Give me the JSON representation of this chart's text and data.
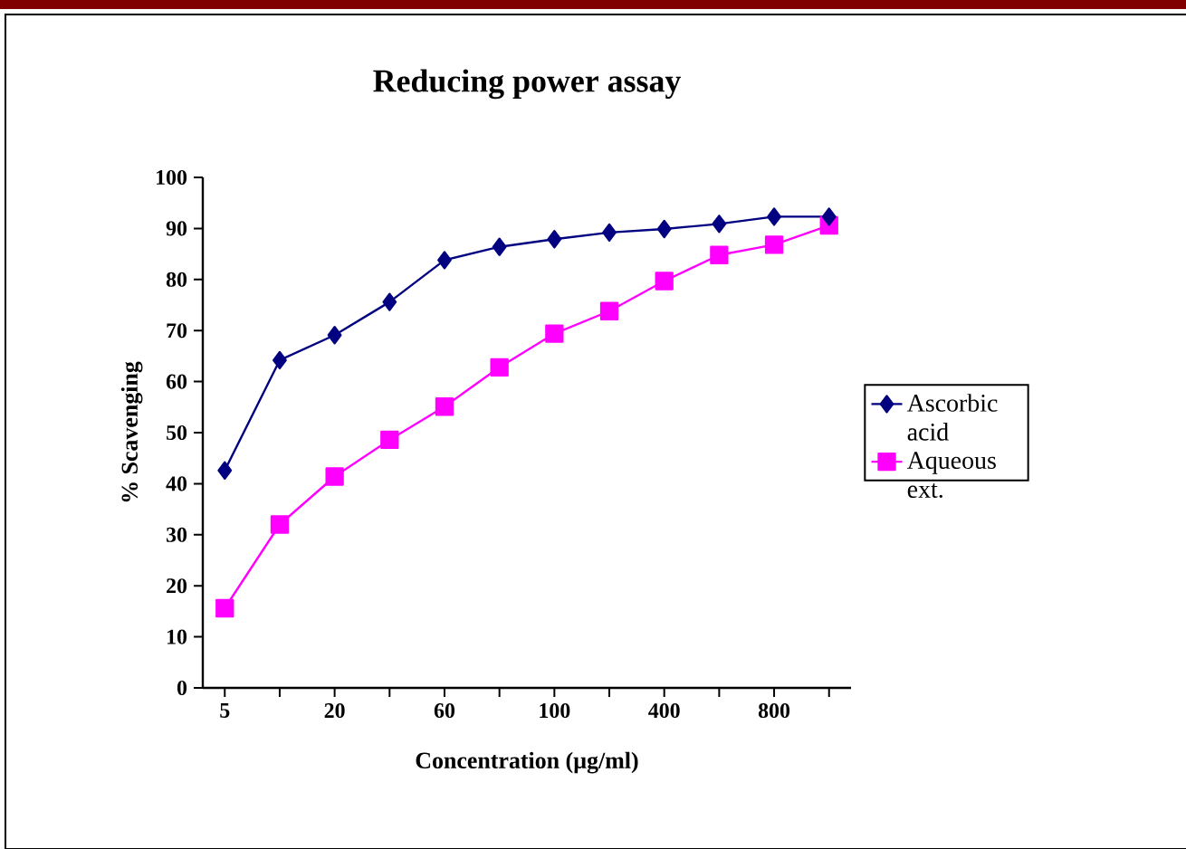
{
  "chart_data": {
    "type": "line",
    "title": "Reducing power assay",
    "xlabel": "Concentration (µg/ml)",
    "ylabel": "% Scavenging",
    "categories": [
      "5",
      null,
      "20",
      null,
      "60",
      null,
      "100",
      null,
      "400",
      null,
      "800",
      null
    ],
    "series": [
      {
        "name": "Ascorbic acid",
        "color": "#000080",
        "marker": "diamond",
        "values": [
          42.6,
          64.2,
          69.1,
          75.6,
          83.8,
          86.4,
          87.9,
          89.2,
          89.9,
          90.9,
          92.3,
          92.3
        ]
      },
      {
        "name": "Aqueous ext.",
        "color": "#ff00ff",
        "marker": "square",
        "values": [
          15.6,
          32,
          41.4,
          48.6,
          55.1,
          62.8,
          69.4,
          73.8,
          79.7,
          84.8,
          86.8,
          90.6
        ]
      }
    ],
    "ylim": [
      0,
      100
    ],
    "yticks": [
      0,
      10,
      20,
      30,
      40,
      50,
      60,
      70,
      80,
      90,
      100
    ],
    "grid": false,
    "legend": "right"
  }
}
